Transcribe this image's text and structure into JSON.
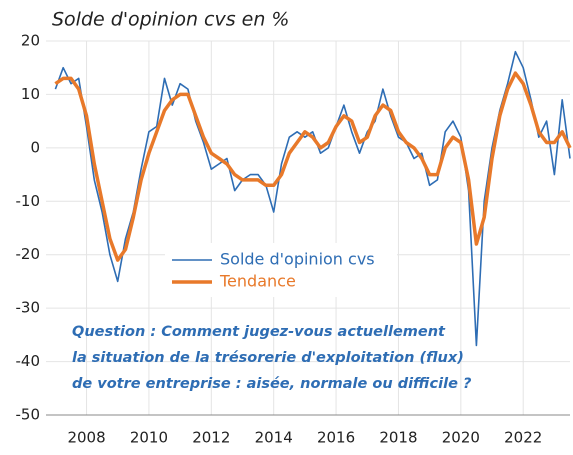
{
  "chart_data": {
    "type": "line",
    "title": "Solde d'opinion cvs en %",
    "annotation": [
      "Question : Comment jugez-vous actuellement",
      "la situation de la trésorerie d'exploitation (flux)",
      "de votre entreprise : aisée, normale ou difficile ?"
    ],
    "x": [
      2007.0,
      2007.25,
      2007.5,
      2007.75,
      2008.0,
      2008.25,
      2008.5,
      2008.75,
      2009.0,
      2009.25,
      2009.5,
      2009.75,
      2010.0,
      2010.25,
      2010.5,
      2010.75,
      2011.0,
      2011.25,
      2011.5,
      2011.75,
      2012.0,
      2012.25,
      2012.5,
      2012.75,
      2013.0,
      2013.25,
      2013.5,
      2013.75,
      2014.0,
      2014.25,
      2014.5,
      2014.75,
      2015.0,
      2015.25,
      2015.5,
      2015.75,
      2016.0,
      2016.25,
      2016.5,
      2016.75,
      2017.0,
      2017.25,
      2017.5,
      2017.75,
      2018.0,
      2018.25,
      2018.5,
      2018.75,
      2019.0,
      2019.25,
      2019.5,
      2019.75,
      2020.0,
      2020.25,
      2020.5,
      2020.75,
      2021.0,
      2021.25,
      2021.5,
      2021.75,
      2022.0,
      2022.25,
      2022.5,
      2022.75,
      2023.0,
      2023.25,
      2023.5
    ],
    "series": [
      {
        "name": "Solde d'opinion cvs",
        "color": "#2e6db4",
        "width": 1.6,
        "values": [
          11,
          15,
          12,
          13,
          4,
          -6,
          -12,
          -20,
          -25,
          -17,
          -12,
          -4,
          3,
          4,
          13,
          8,
          12,
          11,
          5,
          1,
          -4,
          -3,
          -2,
          -8,
          -6,
          -5,
          -5,
          -7,
          -12,
          -3,
          2,
          3,
          2,
          3,
          -1,
          0,
          4,
          8,
          3,
          -1,
          3,
          5,
          11,
          6,
          2,
          1,
          -2,
          -1,
          -7,
          -6,
          3,
          5,
          2,
          -8,
          -37,
          -10,
          0,
          7,
          12,
          18,
          15,
          9,
          2,
          5,
          -5,
          9,
          -2
        ]
      },
      {
        "name": "Tendance",
        "color": "#e8792a",
        "width": 3.5,
        "values": [
          12,
          13,
          13,
          11,
          6,
          -3,
          -10,
          -17,
          -21,
          -19,
          -13,
          -6,
          -1,
          3,
          7,
          9,
          10,
          10,
          6,
          2,
          -1,
          -2,
          -3,
          -5,
          -6,
          -6,
          -6,
          -7,
          -7,
          -5,
          -1,
          1,
          3,
          2,
          0,
          1,
          4,
          6,
          5,
          1,
          2,
          6,
          8,
          7,
          3,
          1,
          0,
          -2,
          -5,
          -5,
          0,
          2,
          1,
          -6,
          -18,
          -13,
          -2,
          6,
          11,
          14,
          12,
          8,
          3,
          1,
          1,
          3,
          0
        ]
      }
    ],
    "xlim": [
      2006.7,
      2023.5
    ],
    "xticks": [
      2008,
      2010,
      2012,
      2014,
      2016,
      2018,
      2020,
      2022
    ],
    "ylim": [
      -50,
      20
    ],
    "yticks": [
      -50,
      -40,
      -30,
      -20,
      -10,
      0,
      10,
      20
    ],
    "grid": true
  }
}
